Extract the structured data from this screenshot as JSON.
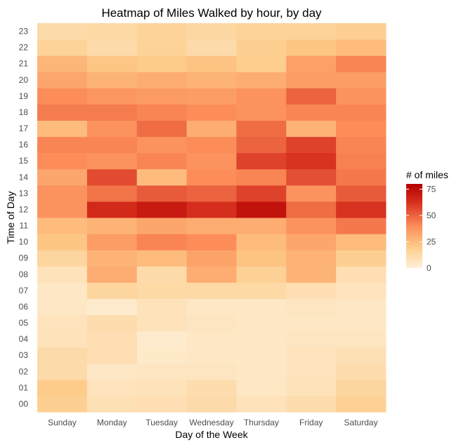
{
  "chart_data": {
    "type": "heatmap",
    "title": "Heatmap of Miles Walked by hour, by day",
    "xlabel": "Day of the Week",
    "ylabel": "Time of Day",
    "x_categories": [
      "Sunday",
      "Monday",
      "Tuesday",
      "Wednesday",
      "Thursday",
      "Friday",
      "Saturday"
    ],
    "y_categories": [
      "00",
      "01",
      "02",
      "03",
      "04",
      "05",
      "06",
      "07",
      "08",
      "09",
      "10",
      "11",
      "12",
      "13",
      "14",
      "15",
      "16",
      "17",
      "18",
      "19",
      "20",
      "21",
      "22",
      "23"
    ],
    "values": [
      [
        18,
        9,
        10,
        12,
        8,
        11,
        17
      ],
      [
        20,
        7,
        8,
        11,
        5,
        8,
        15
      ],
      [
        12,
        5,
        6,
        6,
        5,
        7,
        11
      ],
      [
        12,
        10,
        4,
        5,
        5,
        7,
        9
      ],
      [
        8,
        10,
        3,
        5,
        5,
        6,
        6
      ],
      [
        7,
        11,
        8,
        6,
        5,
        5,
        5
      ],
      [
        5,
        3,
        8,
        5,
        5,
        6,
        5
      ],
      [
        5,
        15,
        13,
        13,
        13,
        10,
        7
      ],
      [
        8,
        30,
        12,
        30,
        17,
        28,
        10
      ],
      [
        15,
        28,
        25,
        33,
        23,
        28,
        18
      ],
      [
        22,
        35,
        42,
        40,
        25,
        32,
        25
      ],
      [
        25,
        28,
        32,
        30,
        30,
        38,
        45
      ],
      [
        38,
        65,
        70,
        63,
        73,
        48,
        62
      ],
      [
        38,
        46,
        52,
        50,
        58,
        38,
        52
      ],
      [
        32,
        56,
        25,
        40,
        42,
        55,
        45
      ],
      [
        40,
        38,
        42,
        38,
        58,
        62,
        43
      ],
      [
        42,
        42,
        38,
        40,
        50,
        58,
        42
      ],
      [
        25,
        38,
        48,
        30,
        48,
        28,
        40
      ],
      [
        44,
        44,
        42,
        40,
        38,
        42,
        42
      ],
      [
        40,
        37,
        36,
        35,
        38,
        50,
        38
      ],
      [
        32,
        28,
        30,
        28,
        30,
        35,
        35
      ],
      [
        27,
        22,
        20,
        23,
        19,
        34,
        42
      ],
      [
        16,
        12,
        16,
        12,
        18,
        22,
        25
      ],
      [
        12,
        13,
        16,
        14,
        16,
        16,
        18
      ]
    ],
    "legend": {
      "title": "# of miles",
      "ticks": [
        0,
        25,
        50,
        75
      ],
      "range": [
        0,
        80
      ],
      "placement": "right",
      "colors": [
        "#fef0d9",
        "#fdcc8a",
        "#fc8d59",
        "#d7301f",
        "#b30000"
      ]
    },
    "grid": true,
    "background": "#ffffff",
    "gridline_color": "#ebebeb"
  }
}
